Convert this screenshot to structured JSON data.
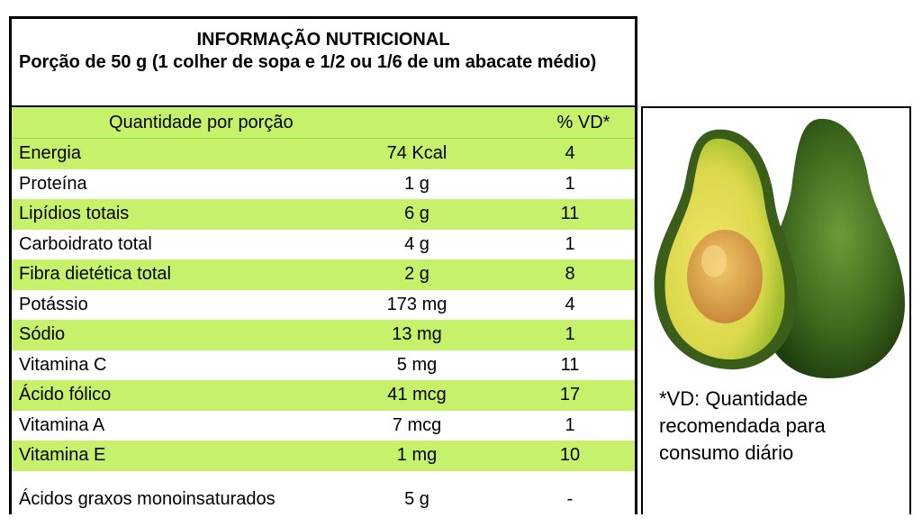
{
  "header": {
    "title": "INFORMAÇÃO NUTRICIONAL",
    "portion": "Porção de 50 g (1 colher de sopa e 1/2 ou 1/6 de um abacate médio)"
  },
  "columns": {
    "quantity": "Quantidade por porção",
    "vd": "% VD*"
  },
  "rows": [
    {
      "name": "Energia",
      "amount": "74 Kcal",
      "vd": "4"
    },
    {
      "name": "Proteína",
      "amount": "1 g",
      "vd": "1"
    },
    {
      "name": "Lipídios totais",
      "amount": "6 g",
      "vd": "11"
    },
    {
      "name": "Carboidrato total",
      "amount": "4 g",
      "vd": "1"
    },
    {
      "name": "Fibra dietética total",
      "amount": "2 g",
      "vd": "8"
    },
    {
      "name": "Potássio",
      "amount": "173 mg",
      "vd": "4"
    },
    {
      "name": "Sódio",
      "amount": "13 mg",
      "vd": "1"
    },
    {
      "name": "Vitamina C",
      "amount": "5 mg",
      "vd": "11"
    },
    {
      "name": "Ácido fólico",
      "amount": "41 mcg",
      "vd": "17"
    },
    {
      "name": "Vitamina A",
      "amount": "7 mcg",
      "vd": "1"
    },
    {
      "name": "Vitamina E",
      "amount": "1 mg",
      "vd": "10"
    },
    {
      "name": "Ácidos graxos monoinsaturados",
      "amount": "5 g",
      "vd": "-"
    }
  ],
  "footnote": "*VD: Quantidade recomendada para consumo diário",
  "colors": {
    "row_highlight": "#c6f26b",
    "border": "#000000"
  },
  "image": {
    "icon": "avocado-icon"
  }
}
